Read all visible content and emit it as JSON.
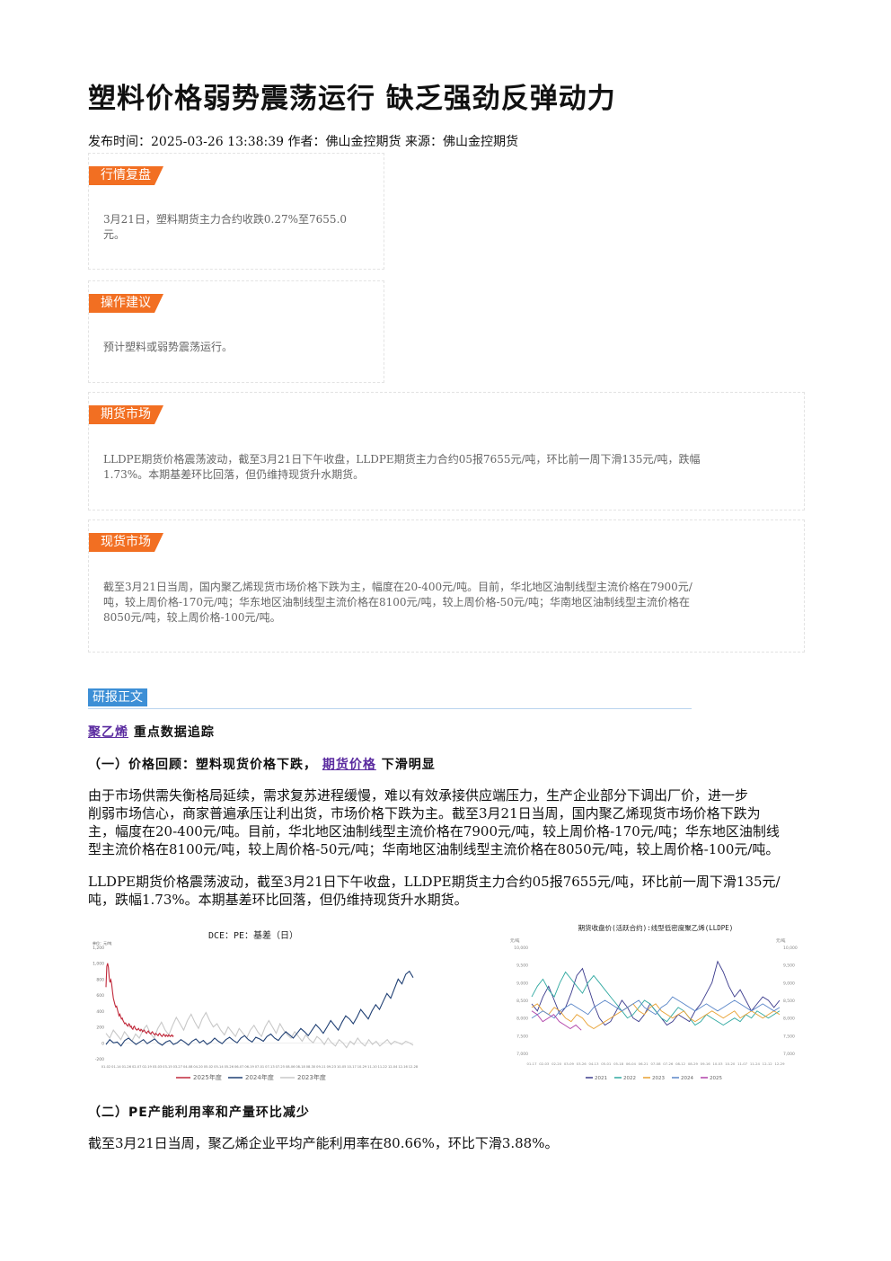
{
  "title": "塑料价格弱势震荡运行 缺乏强劲反弹动力",
  "meta": "发布时间：2025-03-26 13:38:39 作者：佛山金控期货 来源：佛山金控期货",
  "sections": {
    "review": {
      "tag": "行情复盘",
      "lines": [
        "3月21日，塑料期货主力合约收跌0.27%至7655.0",
        "元。"
      ]
    },
    "advice": {
      "tag": "操作建议",
      "lines": [
        "预计塑料或弱势震荡运行。"
      ]
    },
    "futures": {
      "tag": "期货市场",
      "lines": [
        "LLDPE期货价格震荡波动，截至3月21日下午收盘，LLDPE期货主力合约05报7655元/吨，环比前一周下滑135元/吨，跌幅",
        "1.73%。本期基差环比回落，但仍维持现货升水期货。"
      ]
    },
    "spot": {
      "tag": "现货市场",
      "lines": [
        "截至3月21日当周，国内聚乙烯现货市场价格下跌为主，幅度在20-400元/吨。目前，华北地区油制线型主流价格在7900元/",
        "吨，较上周价格-170元/吨；华东地区油制线型主流价格在8100元/吨，较上周价格-50元/吨；华南地区油制线型主流价格在",
        "8050元/吨，较上周价格-100元/吨。"
      ]
    }
  },
  "report": {
    "tag": "研报正文",
    "heading_link": "聚乙烯",
    "heading_rest": "重点数据追踪",
    "sub1_prefix": "（一）价格回顾：塑料现货价格下跌，",
    "sub1_link": "期货价格",
    "sub1_suffix": "下滑明显",
    "para1": [
      "由于市场供需失衡格局延续，需求复苏进程缓慢，难以有效承接供应端压力，生产企业部分下调出厂价，进一步",
      "削弱市场信心，商家普遍承压让利出货，市场价格下跌为主。截至3月21日当周，国内聚乙烯现货市场价格下跌为",
      "主，幅度在20-400元/吨。目前，华北地区油制线型主流价格在7900元/吨，较上周价格-170元/吨；华东地区油制线",
      "型主流价格在8100元/吨，较上周价格-50元/吨；华南地区油制线型主流价格在8050元/吨，较上周价格-100元/吨。"
    ],
    "para2": [
      "LLDPE期货价格震荡波动，截至3月21日下午收盘，LLDPE期货主力合约05报7655元/吨，环比前一周下滑135元/",
      "吨，跌幅1.73%。本期基差环比回落，但仍维持现货升水期货。"
    ],
    "sub2": "（二）PE产能利用率和产量环比减少",
    "para3": [
      "截至3月21日当周，聚乙烯企业平均产能利用率在80.66%，环比下滑3.88%。"
    ]
  },
  "chart_data": [
    {
      "type": "line",
      "title": "DCE：PE：基差（日）",
      "ylabel": "单位：元/吨",
      "y_ticks": [
        "1,200",
        "1,000",
        "800",
        "600",
        "400",
        "200",
        "0",
        "-200"
      ],
      "ylim": [
        -200,
        1200
      ],
      "x_ticks": [
        "01-02",
        "01-14",
        "01-26",
        "02-07",
        "02-19",
        "03-03",
        "03-15",
        "03-27",
        "04-08",
        "04-20",
        "05-02",
        "05-14",
        "05-26",
        "06-07",
        "06-19",
        "07-01",
        "07-13",
        "07-25",
        "08-06",
        "08-18",
        "08-30",
        "09-11",
        "09-23",
        "10-05",
        "10-17",
        "10-29",
        "11-10",
        "11-22",
        "12-04",
        "12-16",
        "12-28"
      ],
      "legend": [
        "2025年度",
        "2024年度",
        "2023年度"
      ],
      "colors": [
        "#c0283a",
        "#1f3f73",
        "#c8c8c8"
      ],
      "series": [
        {
          "name": "2025年度",
          "x": [
            0,
            1,
            2,
            3,
            4,
            5,
            6,
            7,
            8,
            9,
            10,
            11,
            12,
            13,
            14,
            15,
            16,
            17,
            18,
            19,
            20,
            21,
            22,
            23,
            24,
            25,
            26,
            27,
            28,
            29,
            30,
            31,
            32,
            33,
            34,
            35,
            36,
            37,
            38,
            39,
            40,
            41,
            42,
            43,
            44,
            45,
            46,
            47,
            48,
            49,
            50,
            51,
            52,
            53,
            54,
            55,
            56,
            57,
            58,
            59,
            60,
            61,
            62,
            63,
            64,
            65,
            66,
            67,
            68,
            69,
            70,
            71,
            72,
            73,
            74,
            75,
            76,
            77,
            78,
            79,
            80,
            81,
            82,
            83
          ],
          "values": [
            700,
            960,
            1000,
            950,
            820,
            760,
            790,
            740,
            640,
            560,
            520,
            480,
            450,
            460,
            420,
            380,
            340,
            360,
            330,
            300,
            310,
            280,
            260,
            240,
            250,
            230,
            220,
            210,
            240,
            230,
            200,
            210,
            180,
            170,
            200,
            210,
            180,
            170,
            160,
            170,
            180,
            160,
            150,
            170,
            160,
            140,
            150,
            160,
            140,
            130,
            120,
            140,
            150,
            130,
            120,
            110,
            130,
            140,
            120,
            110,
            100,
            120,
            110,
            100,
            90,
            110,
            120,
            100,
            90,
            80,
            100,
            110,
            90,
            80,
            100,
            90,
            80,
            100,
            90,
            80,
            90,
            100,
            80,
            90
          ]
        },
        {
          "name": "2024年度",
          "values": [
            -20,
            40,
            0,
            10,
            -40,
            30,
            60,
            20,
            -20,
            10,
            40,
            -10,
            20,
            50,
            0,
            -30,
            10,
            30,
            -20,
            0,
            40,
            10,
            -30,
            20,
            50,
            0,
            30,
            -20,
            10,
            60,
            20,
            -10,
            40,
            70,
            30,
            0,
            60,
            90,
            40,
            10,
            70,
            50,
            20,
            80,
            110,
            60,
            30,
            90,
            140,
            100,
            60,
            120,
            180,
            140,
            90,
            160,
            230,
            180,
            120,
            200,
            280,
            220,
            160,
            260,
            340,
            300,
            240,
            320,
            420,
            360,
            300,
            400,
            480,
            420,
            520,
            620,
            560,
            680,
            800,
            740,
            860,
            900,
            820
          ]
        },
        {
          "name": "2023年度",
          "values": [
            120,
            60,
            160,
            100,
            40,
            140,
            80,
            20,
            110,
            60,
            160,
            220,
            120,
            60,
            180,
            260,
            160,
            100,
            220,
            320,
            240,
            160,
            280,
            360,
            260,
            180,
            300,
            380,
            280,
            200,
            240,
            160,
            100,
            200,
            140,
            80,
            180,
            120,
            60,
            160,
            220,
            140,
            80,
            200,
            280,
            200,
            120,
            240,
            160,
            100,
            60,
            140,
            80,
            20,
            100,
            40,
            0,
            80,
            40,
            -20,
            60,
            0,
            -40,
            40,
            0,
            -60,
            20,
            -20,
            60,
            0,
            -40,
            40,
            -20,
            20,
            -40,
            0,
            40,
            -20,
            20,
            0,
            -20,
            20,
            0,
            -30
          ]
        }
      ]
    },
    {
      "type": "line",
      "title": "期货收盘价(活跃合约):线型低密度聚乙烯(LLDPE)",
      "ylabel_left": "元/吨",
      "ylabel_right": "元/吨",
      "y_ticks_left": [
        "10,000",
        "9,500",
        "9,000",
        "8,500",
        "8,000",
        "7,500",
        "7,000"
      ],
      "y_ticks_right": [
        "10,000",
        "9,500",
        "9,000",
        "8,500",
        "8,000",
        "7,500",
        "7,000"
      ],
      "ylim": [
        7000,
        10000
      ],
      "x_ticks": [
        "01-17",
        "02-03",
        "02-20",
        "03-09",
        "03-26",
        "04-13",
        "05-01",
        "05-18",
        "06-04",
        "06-21",
        "07-08",
        "07-26",
        "08-12",
        "08-29",
        "09-16",
        "10-03",
        "10-20",
        "11-07",
        "11-24",
        "12-12",
        "12-29"
      ],
      "legend": [
        "2021",
        "2022",
        "2023",
        "2024",
        "2025"
      ],
      "colors": [
        "#3a3a8c",
        "#2fa8a0",
        "#e8a030",
        "#5a86c8",
        "#b040a8"
      ],
      "series": [
        {
          "name": "2021",
          "values": [
            8400,
            8200,
            8600,
            8900,
            8500,
            8100,
            8300,
            8700,
            9200,
            9400,
            8900,
            8400,
            8000,
            7800,
            7900,
            8200,
            8500,
            8300,
            8000,
            7900,
            8100,
            8400,
            8200,
            8000,
            7800,
            7900,
            8100,
            8000,
            7900,
            8200,
            8400,
            8700,
            9000,
            9600,
            9300,
            8900,
            8600,
            8800,
            8500,
            8200,
            8400,
            8600,
            8500,
            8300,
            8500
          ]
        },
        {
          "name": "2022",
          "values": [
            8600,
            8900,
            9100,
            8800,
            8600,
            9000,
            9300,
            9100,
            8900,
            8700,
            9000,
            9200,
            9000,
            8800,
            8600,
            8400,
            8200,
            8000,
            8100,
            8300,
            8500,
            8400,
            8200,
            8000,
            7900,
            8100,
            8300,
            8200,
            8000,
            7800,
            7900,
            8100,
            8000,
            7900,
            7800,
            7900,
            8000,
            7900,
            8100,
            8000,
            8200,
            8100,
            8000,
            8100,
            8200
          ]
        },
        {
          "name": "2023",
          "values": [
            8300,
            8400,
            8200,
            8100,
            8300,
            8200,
            8000,
            7900,
            8100,
            8000,
            7800,
            7700,
            7800,
            7900,
            8000,
            8100,
            8200,
            8300,
            8400,
            8200,
            8100,
            8300,
            8400,
            8200,
            8100,
            8000,
            8100,
            8200,
            8000,
            7900,
            8000,
            8100,
            8200,
            8100,
            8000,
            8100,
            8200,
            8000,
            8100,
            8200,
            8100,
            8000,
            8100,
            8200,
            8100
          ]
        },
        {
          "name": "2024",
          "values": [
            8000,
            8100,
            8200,
            8100,
            8000,
            8200,
            8300,
            8400,
            8300,
            8200,
            8100,
            8300,
            8400,
            8500,
            8400,
            8300,
            8200,
            8300,
            8400,
            8500,
            8300,
            8200,
            8100,
            8300,
            8400,
            8600,
            8500,
            8400,
            8300,
            8200,
            8300,
            8400,
            8300,
            8200,
            8300,
            8400,
            8500,
            8400,
            8300,
            8200,
            8300,
            8400,
            8300,
            8200,
            8300
          ]
        },
        {
          "name": "2025",
          "values": [
            8200,
            8100,
            7900,
            8000,
            8100,
            7900,
            7800,
            7700,
            7800,
            7655
          ]
        }
      ]
    }
  ]
}
